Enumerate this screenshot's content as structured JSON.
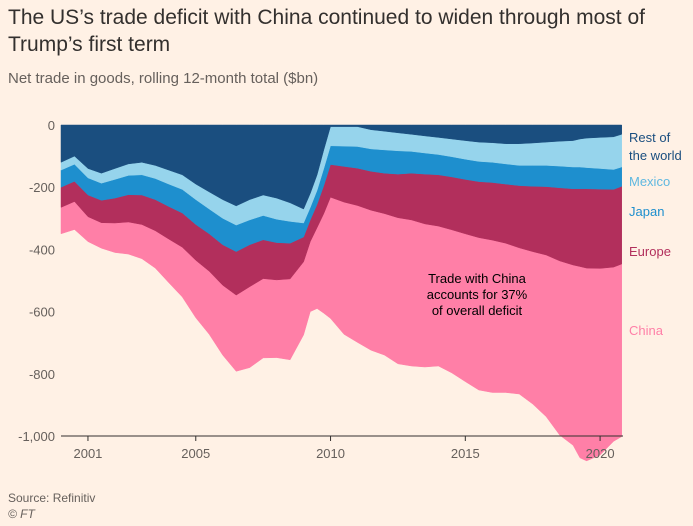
{
  "title": "The US’s trade deficit with China continued to widen through most of Trump’s first term",
  "subtitle": "Net trade in goods, rolling 12-month total ($bn)",
  "source": "Source: Refinitiv",
  "credit": "© FT",
  "chart_data": {
    "type": "area",
    "stacked": true,
    "ylim": [
      -1000,
      0
    ],
    "yticks": [
      0,
      -200,
      -400,
      -600,
      -800,
      -1000
    ],
    "ytick_labels": [
      "0",
      "-200",
      "-400",
      "-600",
      "-800",
      "-1,000"
    ],
    "xlim": [
      2000.0,
      2020.85
    ],
    "xticks": [
      2001,
      2005,
      2010,
      2015,
      2020
    ],
    "xtick_labels": [
      "2001",
      "2005",
      "2010",
      "2015",
      "2020"
    ],
    "x": [
      2000.0,
      2000.5,
      2001.0,
      2001.5,
      2002.0,
      2002.5,
      2003.0,
      2003.5,
      2004.0,
      2004.5,
      2005.0,
      2005.5,
      2006.0,
      2006.5,
      2007.0,
      2007.5,
      2008.0,
      2008.5,
      2009.0,
      2009.25,
      2009.5,
      2009.75,
      2010.0,
      2010.5,
      2011.0,
      2011.5,
      2012.0,
      2012.5,
      2013.0,
      2013.5,
      2014.0,
      2014.5,
      2015.0,
      2015.5,
      2016.0,
      2016.5,
      2017.0,
      2017.5,
      2018.0,
      2018.5,
      2019.0,
      2019.25,
      2019.5,
      2020.0,
      2020.5,
      2020.8
    ],
    "series": [
      {
        "name": "China",
        "color": "#ff7fa7",
        "values": [
          -85,
          -90,
          -80,
          -82,
          -95,
          -103,
          -110,
          -120,
          -140,
          -160,
          -185,
          -203,
          -225,
          -245,
          -260,
          -255,
          -250,
          -260,
          -235,
          -225,
          -260,
          -320,
          -390,
          -425,
          -440,
          -450,
          -455,
          -470,
          -470,
          -460,
          -450,
          -460,
          -475,
          -490,
          -490,
          -480,
          -470,
          -490,
          -520,
          -560,
          -580,
          -615,
          -620,
          -600,
          -560,
          -555
        ]
      },
      {
        "name": "Europe",
        "color": "#b22f5c",
        "values": [
          -65,
          -65,
          -70,
          -72,
          -80,
          -88,
          -95,
          -100,
          -105,
          -110,
          -115,
          -120,
          -130,
          -140,
          -135,
          -125,
          -120,
          -115,
          -80,
          -70,
          -75,
          -90,
          -105,
          -115,
          -120,
          -125,
          -130,
          -140,
          -150,
          -160,
          -165,
          -170,
          -175,
          -180,
          -185,
          -190,
          -200,
          -210,
          -220,
          -235,
          -245,
          -250,
          -255,
          -255,
          -250,
          -250
        ]
      },
      {
        "name": "Japan",
        "color": "#1e8fce",
        "values": [
          -55,
          -55,
          -55,
          -55,
          -60,
          -62,
          -65,
          -68,
          -72,
          -76,
          -80,
          -80,
          -85,
          -85,
          -80,
          -78,
          -75,
          -70,
          -45,
          -40,
          -45,
          -55,
          -60,
          -65,
          -70,
          -72,
          -75,
          -75,
          -70,
          -68,
          -65,
          -65,
          -65,
          -65,
          -65,
          -65,
          -65,
          -67,
          -68,
          -70,
          -70,
          -70,
          -68,
          -66,
          -64,
          -62
        ]
      },
      {
        "name": "Mexico",
        "color": "#96d4ec",
        "values": [
          -25,
          -26,
          -30,
          -32,
          -35,
          -37,
          -40,
          -42,
          -45,
          -47,
          -50,
          -55,
          -60,
          -62,
          -65,
          -66,
          -68,
          -60,
          -45,
          -45,
          -50,
          -60,
          -62,
          -63,
          -64,
          -62,
          -60,
          -58,
          -55,
          -55,
          -55,
          -57,
          -60,
          -62,
          -63,
          -65,
          -70,
          -72,
          -75,
          -80,
          -85,
          -90,
          -95,
          -100,
          -105,
          -105
        ]
      },
      {
        "name": "Rest of the world",
        "color": "#1a4e7f",
        "values": [
          -120,
          -100,
          -140,
          -155,
          -140,
          -125,
          -120,
          -130,
          -145,
          -160,
          -190,
          -215,
          -240,
          -260,
          -240,
          -225,
          -235,
          -250,
          -270,
          -220,
          -160,
          -80,
          -5,
          -5,
          -5,
          -15,
          -20,
          -25,
          -30,
          -35,
          -40,
          -45,
          -50,
          -55,
          -57,
          -60,
          -60,
          -58,
          -55,
          -52,
          -50,
          -45,
          -42,
          -40,
          -38,
          -30
        ]
      }
    ],
    "series_labels": [
      {
        "key": "rest",
        "lines": [
          "Rest of",
          "the world"
        ]
      },
      {
        "key": "mexico",
        "lines": [
          "Mexico"
        ]
      },
      {
        "key": "japan",
        "lines": [
          "Japan"
        ]
      },
      {
        "key": "europe",
        "lines": [
          "Europe"
        ]
      },
      {
        "key": "china",
        "lines": [
          "China"
        ]
      }
    ],
    "annotation": [
      "Trade with China",
      "accounts for 37%",
      "of overall deficit"
    ]
  }
}
